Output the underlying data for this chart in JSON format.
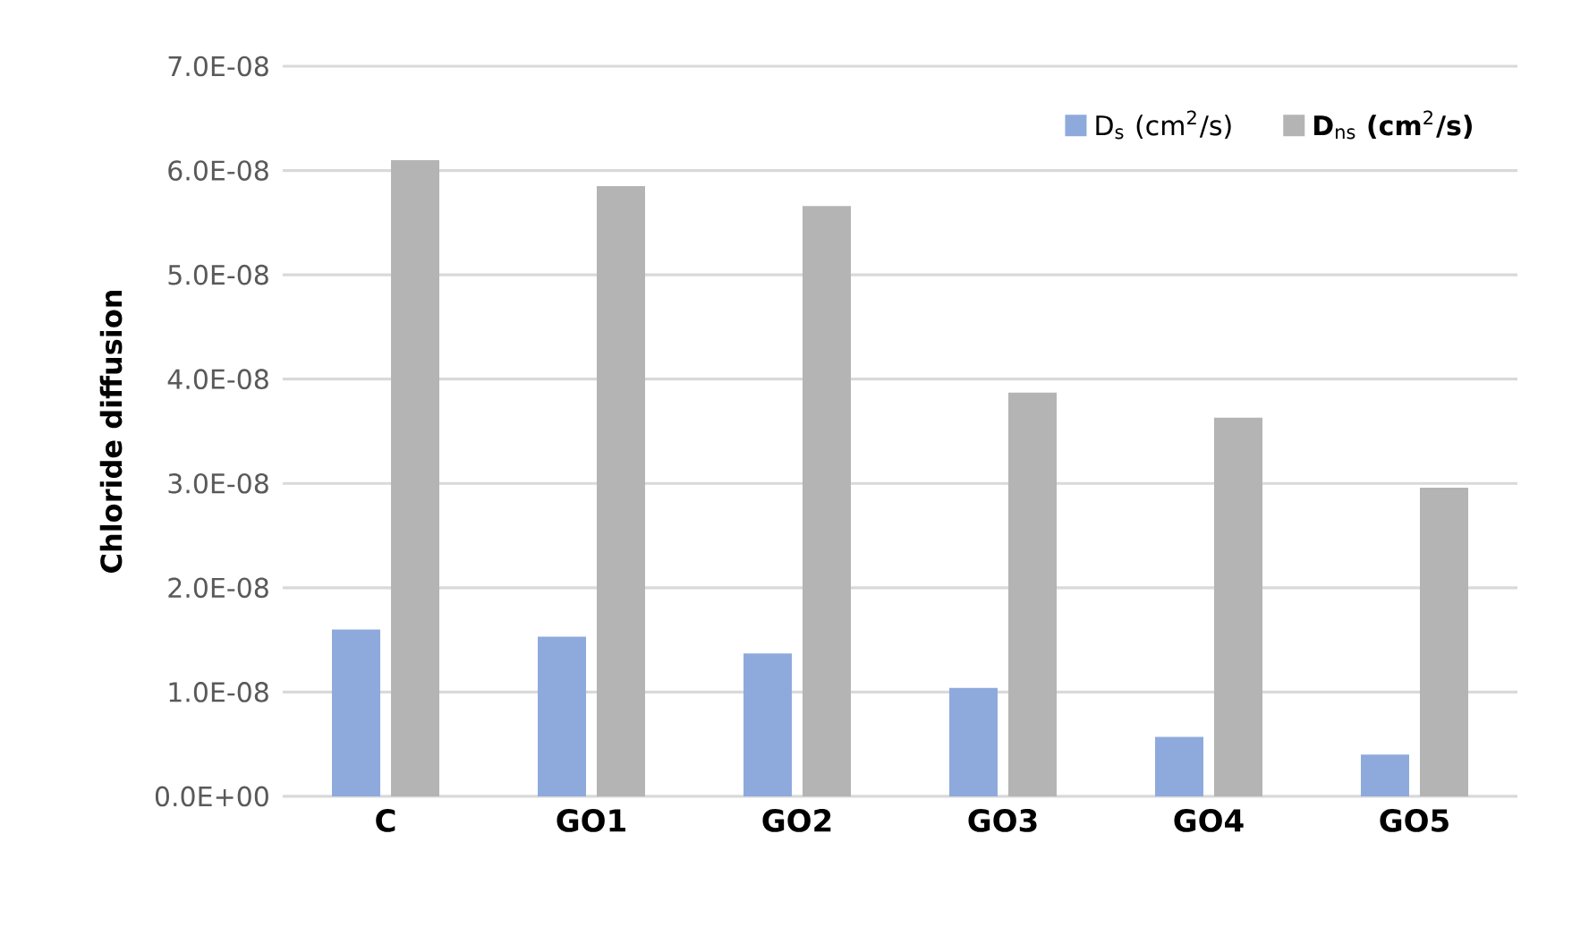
{
  "chart_data": {
    "type": "bar",
    "ylabel": "Chloride diffusion",
    "categories": [
      "C",
      "GO1",
      "GO2",
      "GO3",
      "GO4",
      "GO5"
    ],
    "series": [
      {
        "name": "D$_{s}$ (cm$^{2}$/s)",
        "color": "#8eaadc",
        "values": [
          1.6e-08,
          1.53e-08,
          1.37e-08,
          1.04e-08,
          5.7e-09,
          4e-09
        ]
      },
      {
        "name": "**D**$_{ns}$ **(cm**$^{2}$**/s)**",
        "color": "#b4b4b4",
        "values": [
          6.1e-08,
          5.85e-08,
          5.66e-08,
          3.87e-08,
          3.63e-08,
          2.96e-08
        ]
      }
    ],
    "ylim": [
      0,
      7e-08
    ],
    "yticks": [
      {
        "value": 0,
        "label": "0.0E+00"
      },
      {
        "value": 1e-08,
        "label": "1.0E-08"
      },
      {
        "value": 2e-08,
        "label": "2.0E-08"
      },
      {
        "value": 3e-08,
        "label": "3.0E-08"
      },
      {
        "value": 4e-08,
        "label": "4.0E-08"
      },
      {
        "value": 5e-08,
        "label": "5.0E-08"
      },
      {
        "value": 6e-08,
        "label": "6.0E-08"
      },
      {
        "value": 7e-08,
        "label": "7.0E-08"
      }
    ],
    "grid": "y",
    "legend": "top right"
  }
}
